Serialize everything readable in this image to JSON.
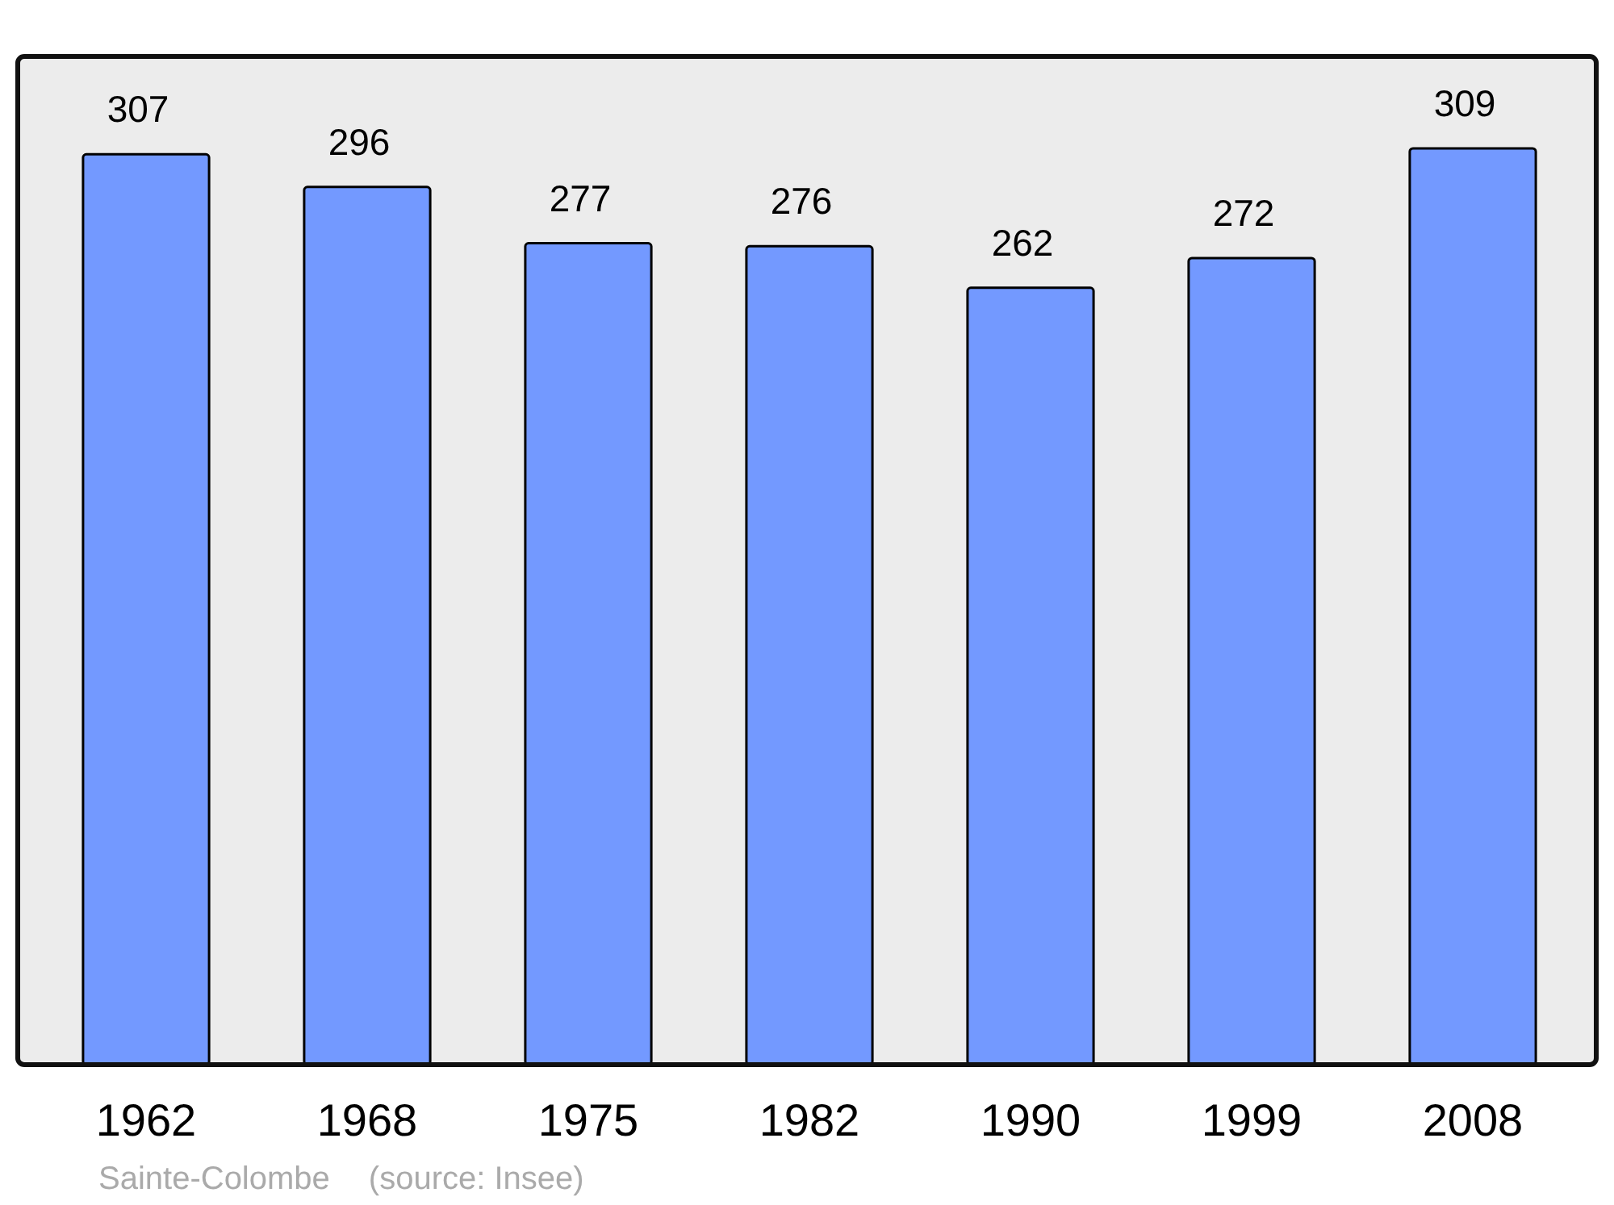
{
  "chart_data": {
    "type": "bar",
    "categories": [
      "1962",
      "1968",
      "1975",
      "1982",
      "1990",
      "1999",
      "2008"
    ],
    "values": [
      307,
      296,
      277,
      276,
      262,
      272,
      309
    ],
    "color": "#7399ff",
    "ylim": [
      0,
      340
    ],
    "data_labels": true,
    "annotations": [
      "Sainte-Colombe",
      "(source: Insee)"
    ]
  }
}
